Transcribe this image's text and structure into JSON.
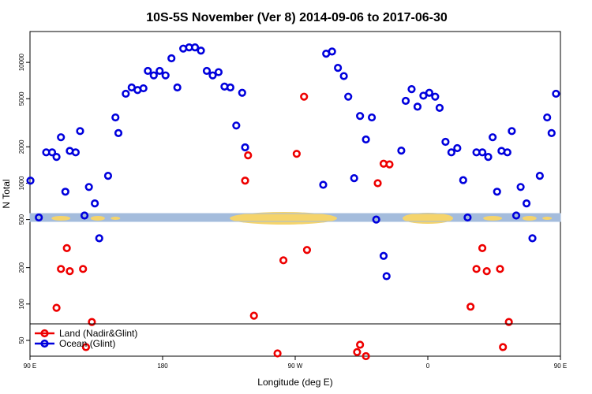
{
  "chart_data": {
    "type": "scatter",
    "title": "10S-5S November (Ver 8)   2014-09-06 to 2017-06-30",
    "xlabel": "Longitude (deg E)",
    "ylabel": "N Total",
    "xlim": [
      90,
      450
    ],
    "ylim_log": [
      37,
      18000
    ],
    "y_scale": "log",
    "x_ticks": [
      {
        "value": 90,
        "label": "90 E"
      },
      {
        "value": 180,
        "label": "180"
      },
      {
        "value": 270,
        "label": "90 W"
      },
      {
        "value": 360,
        "label": "0"
      },
      {
        "value": 450,
        "label": "90 E"
      },
      {
        "value": 540,
        "label": "180"
      }
    ],
    "y_ticks": [
      {
        "value": 50,
        "label": "50"
      },
      {
        "value": 100,
        "label": "100"
      },
      {
        "value": 200,
        "label": "200"
      },
      {
        "value": 500,
        "label": "500"
      },
      {
        "value": 1000,
        "label": "1000"
      },
      {
        "value": 2000,
        "label": "2000"
      },
      {
        "value": 5000,
        "label": "5000"
      },
      {
        "value": 10000,
        "label": "10000"
      }
    ],
    "legend": {
      "placement": "bottom-left",
      "entries": [
        {
          "label": "Land (Nadir&Glint)",
          "color": "#ee0000"
        },
        {
          "label": "Ocean (Glint)",
          "color": "#0000dd"
        }
      ]
    },
    "series": [
      {
        "name": "Ocean (Glint)",
        "color": "#0000dd",
        "points": [
          [
            90.3,
            1050
          ],
          [
            96,
            520
          ],
          [
            101,
            1800
          ],
          [
            105,
            1800
          ],
          [
            108,
            1650
          ],
          [
            111,
            2400
          ],
          [
            114,
            850
          ],
          [
            117,
            1850
          ],
          [
            121,
            1800
          ],
          [
            124,
            2700
          ],
          [
            127,
            540
          ],
          [
            130,
            930
          ],
          [
            134,
            680
          ],
          [
            137,
            350
          ],
          [
            143,
            1150
          ],
          [
            148,
            3500
          ],
          [
            150,
            2600
          ],
          [
            155,
            5500
          ],
          [
            159,
            6200
          ],
          [
            163,
            5900
          ],
          [
            167,
            6100
          ],
          [
            170,
            8500
          ],
          [
            174,
            7800
          ],
          [
            178,
            8500
          ],
          [
            182,
            7800
          ],
          [
            186,
            10800
          ],
          [
            190,
            6200
          ],
          [
            194,
            13000
          ],
          [
            198,
            13300
          ],
          [
            202,
            13300
          ],
          [
            206,
            12500
          ],
          [
            210,
            8500
          ],
          [
            214,
            7800
          ],
          [
            218,
            8300
          ],
          [
            222,
            6300
          ],
          [
            226,
            6200
          ],
          [
            230,
            3000
          ],
          [
            234,
            5600
          ],
          [
            236,
            1980
          ]
        ]
      },
      {
        "name": "Ocean (Glint) ",
        "color": "#0000dd",
        "points": [
          [
            289,
            970
          ],
          [
            291,
            11800
          ],
          [
            295,
            12300
          ],
          [
            299,
            9000
          ],
          [
            303,
            7700
          ],
          [
            306,
            5200
          ],
          [
            310,
            1100
          ],
          [
            314,
            3600
          ],
          [
            318,
            2300
          ],
          [
            322,
            3500
          ],
          [
            325,
            500
          ],
          [
            330,
            250
          ],
          [
            332,
            170
          ],
          [
            342,
            1860
          ],
          [
            345,
            4800
          ],
          [
            349,
            6000
          ],
          [
            353,
            4300
          ],
          [
            357,
            5300
          ],
          [
            361,
            5600
          ],
          [
            365,
            5200
          ],
          [
            368,
            4200
          ],
          [
            372,
            2200
          ],
          [
            376,
            1800
          ],
          [
            380,
            1950
          ],
          [
            384,
            1060
          ],
          [
            387,
            520
          ],
          [
            393,
            1800
          ],
          [
            397,
            1800
          ],
          [
            401,
            1650
          ],
          [
            404,
            2400
          ],
          [
            407,
            850
          ],
          [
            410,
            1850
          ],
          [
            414,
            1800
          ],
          [
            417,
            2700
          ],
          [
            420,
            540
          ],
          [
            423,
            930
          ],
          [
            427,
            680
          ],
          [
            431,
            350
          ],
          [
            436,
            1150
          ],
          [
            441,
            3500
          ],
          [
            444,
            2600
          ],
          [
            447,
            5500
          ]
        ]
      },
      {
        "name": "Land (Nadir&Glint)",
        "color": "#ee0000",
        "points": [
          [
            108,
            93
          ],
          [
            111,
            195
          ],
          [
            115,
            290
          ],
          [
            117,
            187
          ],
          [
            126,
            195
          ],
          [
            128,
            44
          ],
          [
            132,
            71
          ],
          [
            236,
            1050
          ],
          [
            238,
            1700
          ],
          [
            242,
            80
          ],
          [
            258,
            39
          ],
          [
            262,
            230
          ],
          [
            271,
            1750
          ],
          [
            276,
            5200
          ],
          [
            278,
            280
          ],
          [
            312,
            40
          ],
          [
            314,
            46
          ],
          [
            318,
            37
          ],
          [
            326,
            1000
          ],
          [
            330,
            1450
          ],
          [
            334,
            1430
          ],
          [
            389,
            95
          ],
          [
            393,
            195
          ],
          [
            397,
            290
          ],
          [
            400,
            187
          ],
          [
            409,
            195
          ],
          [
            411,
            44
          ],
          [
            415,
            71
          ]
        ]
      }
    ],
    "band": {
      "y": 520,
      "color_ocean": "#a4bcdc",
      "color_land": "#f5d46b"
    }
  }
}
